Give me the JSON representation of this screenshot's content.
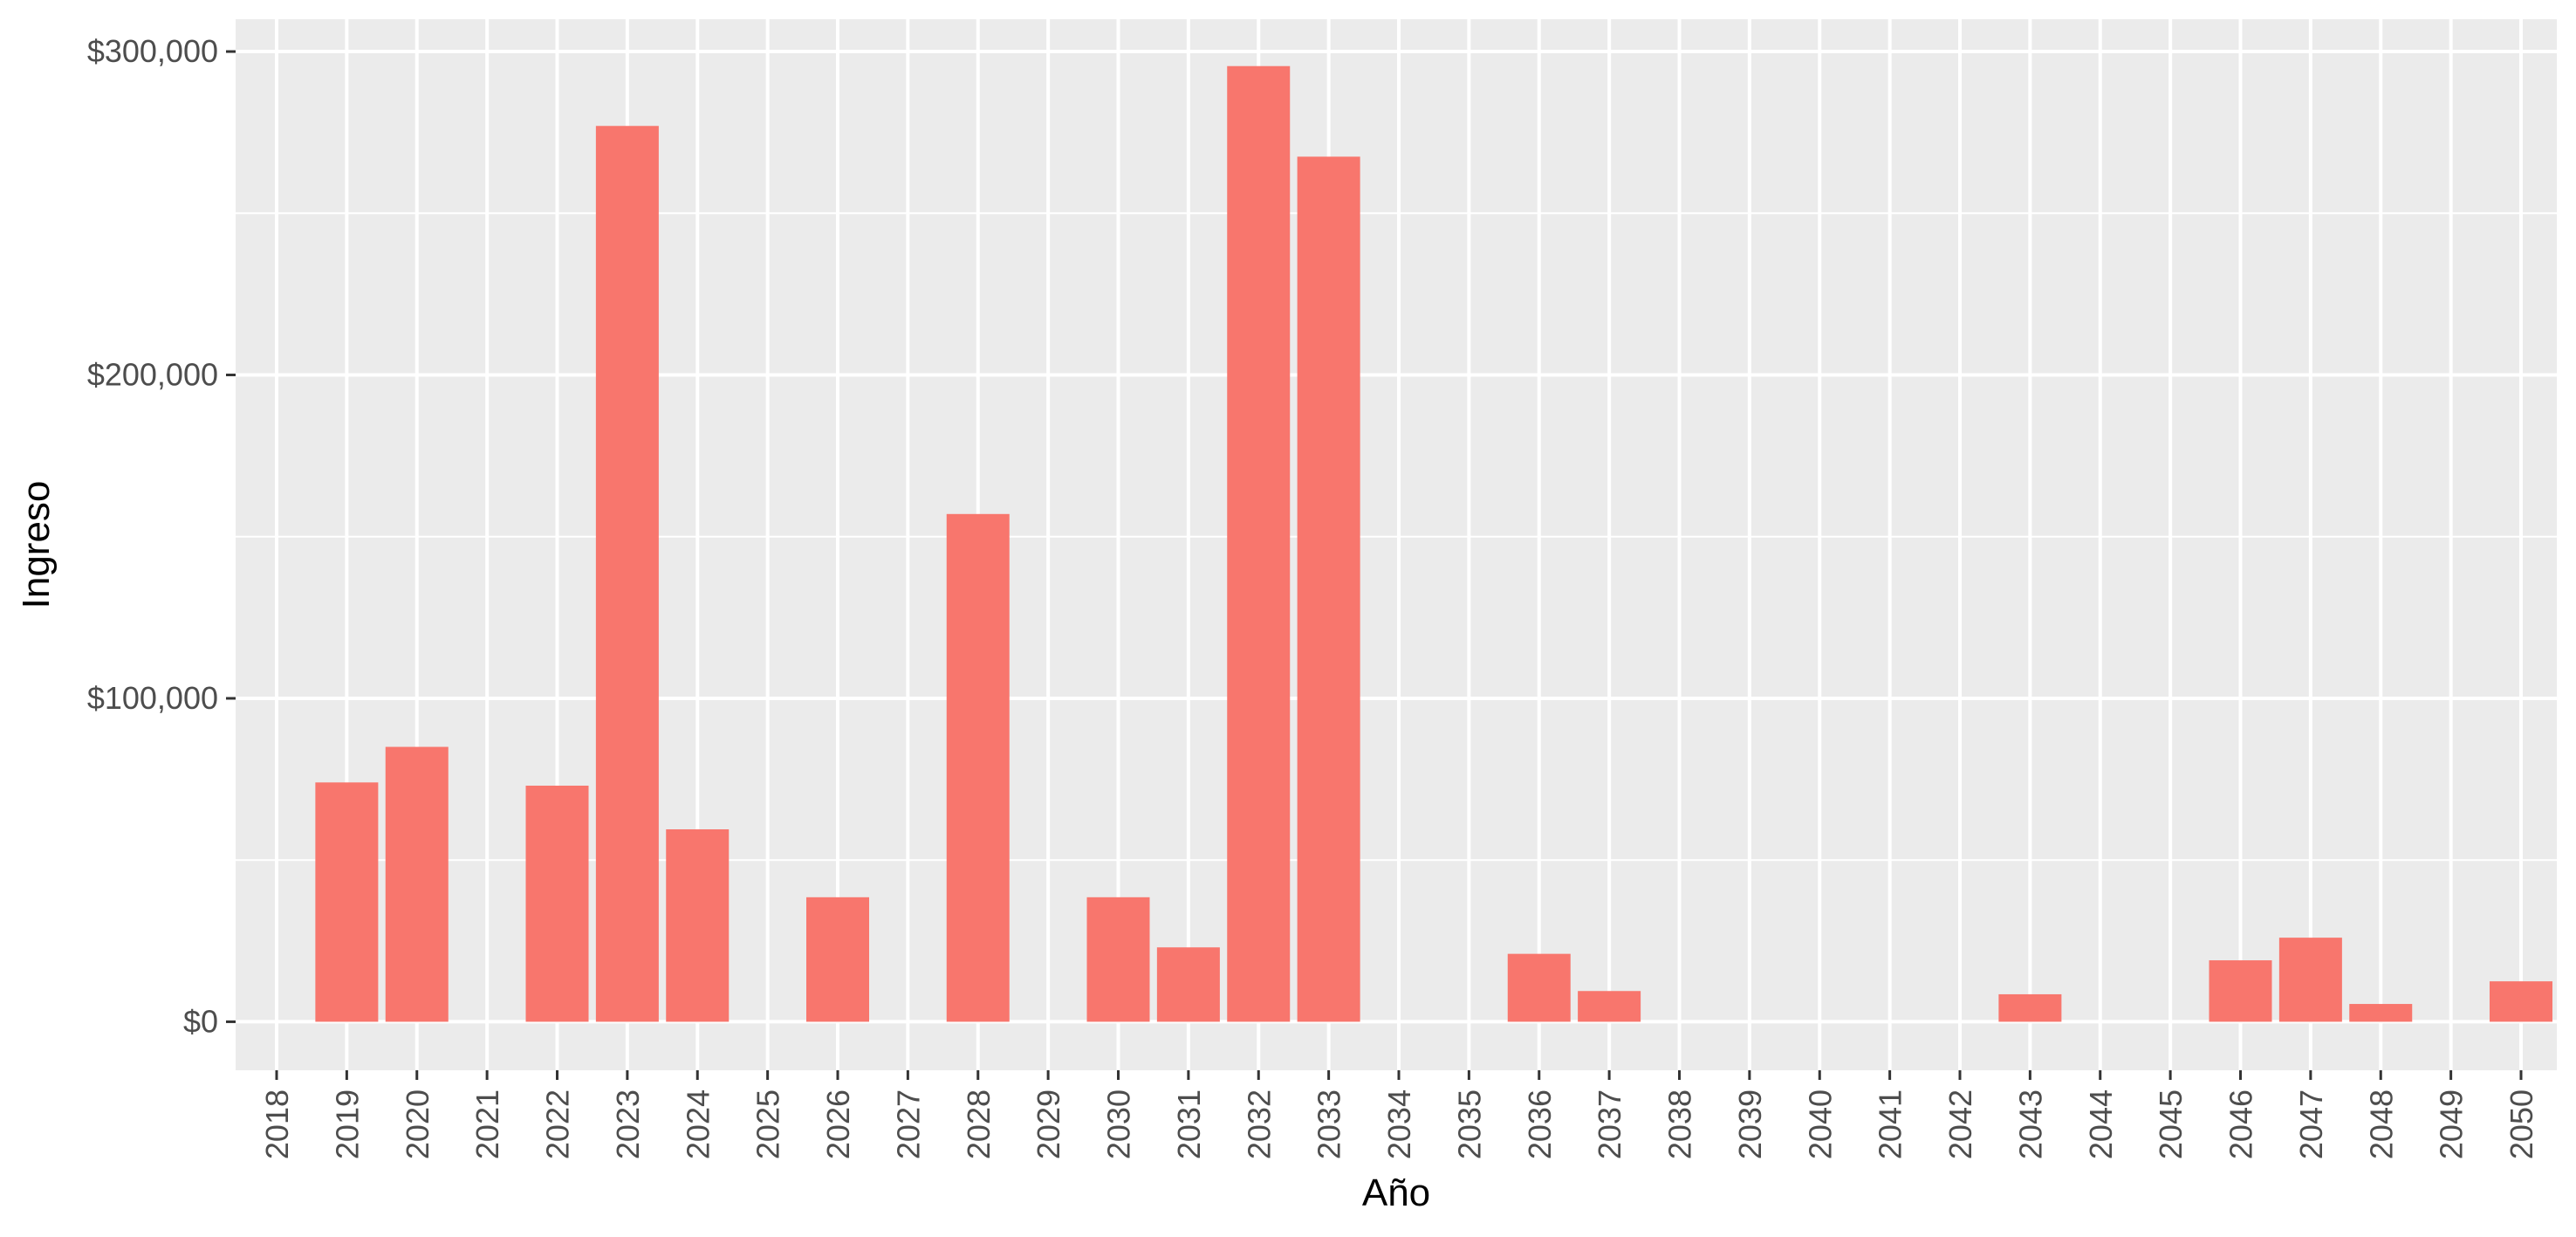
{
  "chart_data": {
    "type": "bar",
    "title": "",
    "xlabel": "Año",
    "ylabel": "Ingreso",
    "ylim": [
      -15000,
      310000
    ],
    "y_ticks": [
      0,
      100000,
      200000,
      300000
    ],
    "y_tick_labels": [
      "$0",
      "$100,000",
      "$200,000",
      "$300,000"
    ],
    "categories": [
      "2018",
      "2019",
      "2020",
      "2021",
      "2022",
      "2023",
      "2024",
      "2025",
      "2026",
      "2027",
      "2028",
      "2029",
      "2030",
      "2031",
      "2032",
      "2033",
      "2034",
      "2035",
      "2036",
      "2037",
      "2038",
      "2039",
      "2040",
      "2041",
      "2042",
      "2043",
      "2044",
      "2045",
      "2046",
      "2047",
      "2048",
      "2049",
      "2050"
    ],
    "values": [
      0,
      74000,
      85000,
      0,
      73000,
      277000,
      59500,
      0,
      38500,
      0,
      157000,
      0,
      38500,
      23000,
      295500,
      267500,
      0,
      0,
      21000,
      9500,
      0,
      0,
      0,
      0,
      0,
      8500,
      0,
      0,
      19000,
      26000,
      5500,
      0,
      12500
    ],
    "bar_color": "#F8766D",
    "panel_background": "#EBEBEB",
    "grid_color": "#FFFFFF",
    "grid": true,
    "legend": "none"
  }
}
